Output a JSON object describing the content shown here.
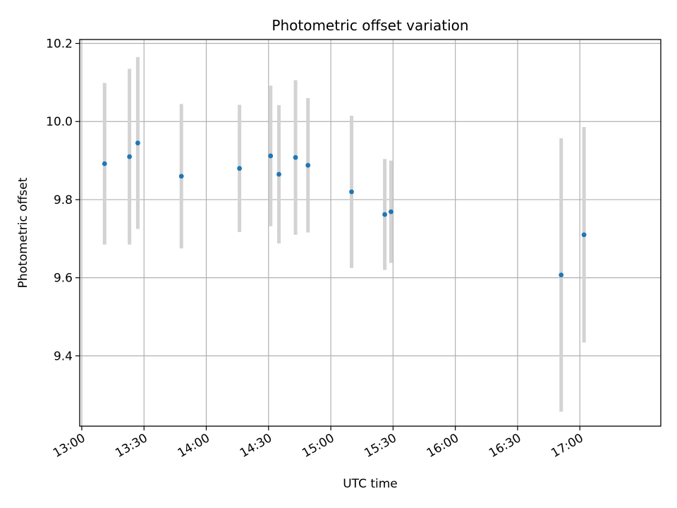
{
  "chart_data": {
    "type": "scatter",
    "title": "Photometric offset variation",
    "xlabel": "UTC time",
    "ylabel": "Photometric offset",
    "xlim": [
      "12:59",
      "17:39"
    ],
    "ylim": [
      9.22,
      10.21
    ],
    "x_ticks": [
      "13:00",
      "13:30",
      "14:00",
      "14:30",
      "15:00",
      "15:30",
      "16:00",
      "16:30",
      "17:00"
    ],
    "y_ticks": [
      "9.4",
      "9.6",
      "9.8",
      "10.0",
      "10.2"
    ],
    "grid": true,
    "colors": {
      "marker": "#1f77b4",
      "errorbar": "#d3d3d3",
      "grid": "#b0b0b0"
    },
    "series": [
      {
        "points": [
          {
            "x": "13:11",
            "y": 9.892,
            "err": 0.207
          },
          {
            "x": "13:23",
            "y": 9.91,
            "err": 0.225
          },
          {
            "x": "13:27",
            "y": 9.945,
            "err": 0.22
          },
          {
            "x": "13:48",
            "y": 9.86,
            "err": 0.185
          },
          {
            "x": "14:16",
            "y": 9.88,
            "err": 0.163
          },
          {
            "x": "14:31",
            "y": 9.912,
            "err": 0.18
          },
          {
            "x": "14:35",
            "y": 9.865,
            "err": 0.177
          },
          {
            "x": "14:43",
            "y": 9.908,
            "err": 0.198
          },
          {
            "x": "14:49",
            "y": 9.888,
            "err": 0.172
          },
          {
            "x": "15:10",
            "y": 9.82,
            "err": 0.195
          },
          {
            "x": "15:26",
            "y": 9.762,
            "err": 0.142
          },
          {
            "x": "15:29",
            "y": 9.769,
            "err": 0.131
          },
          {
            "x": "16:51",
            "y": 9.607,
            "err": 0.35
          },
          {
            "x": "17:02",
            "y": 9.71,
            "err": 0.276
          }
        ]
      }
    ]
  }
}
